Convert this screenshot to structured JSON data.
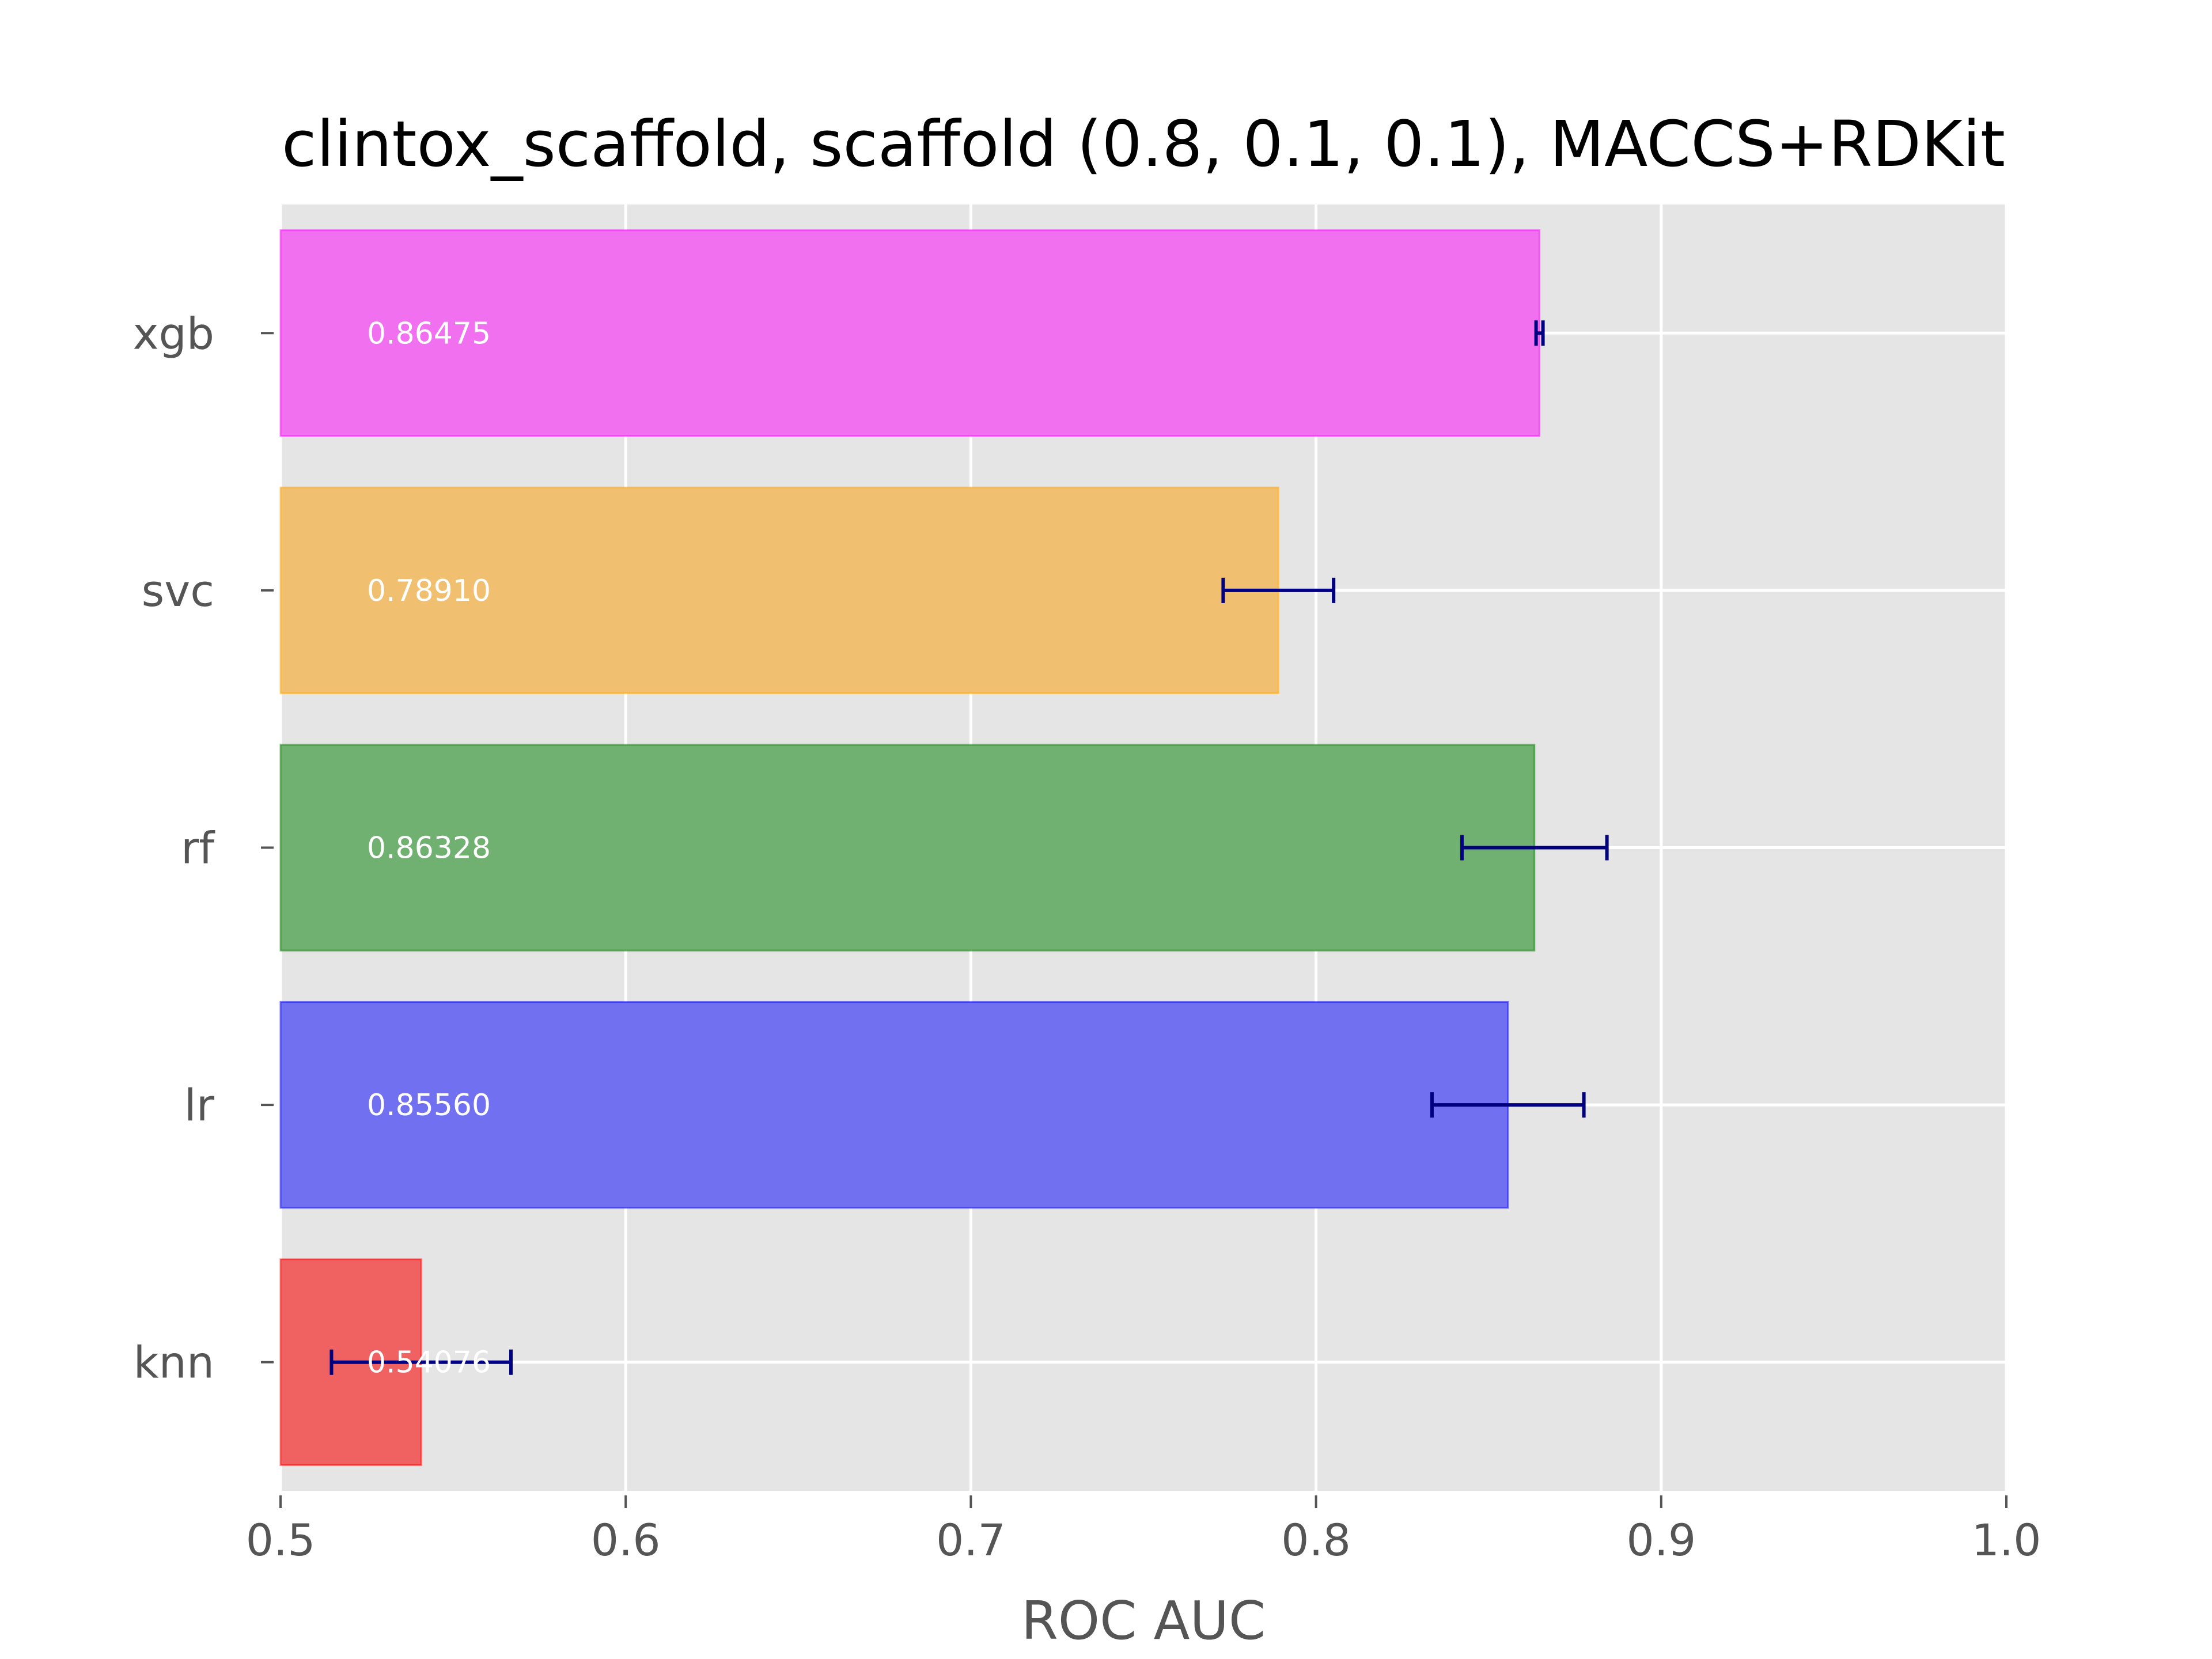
{
  "chart_data": {
    "type": "bar",
    "orientation": "horizontal",
    "title": "clintox_scaffold, scaffold (0.8, 0.1, 0.1), MACCS+RDKit",
    "xlabel": "ROC AUC",
    "ylabel": "",
    "xlim": [
      0.5,
      1.0
    ],
    "xticks": [
      "0.5",
      "0.6",
      "0.7",
      "0.8",
      "0.9",
      "1.0"
    ],
    "grid": true,
    "background": "#e5e5e5",
    "errorbar_color": "#000080",
    "categories": [
      "knn",
      "lr",
      "rf",
      "svc",
      "xgb"
    ],
    "values": [
      0.54076,
      0.8556,
      0.86328,
      0.7891,
      0.86475
    ],
    "value_labels": [
      "0.54076",
      "0.85560",
      "0.86328",
      "0.78910",
      "0.86475"
    ],
    "errors": [
      0.026,
      0.022,
      0.021,
      0.016,
      0.001
    ],
    "colors": [
      "#f06262",
      "#7070f0",
      "#70b070",
      "#f0c070",
      "#f070f0"
    ],
    "edge_colors": [
      "#ff0000",
      "#0000ff",
      "#008000",
      "#ffa500",
      "#ff00ff"
    ]
  }
}
